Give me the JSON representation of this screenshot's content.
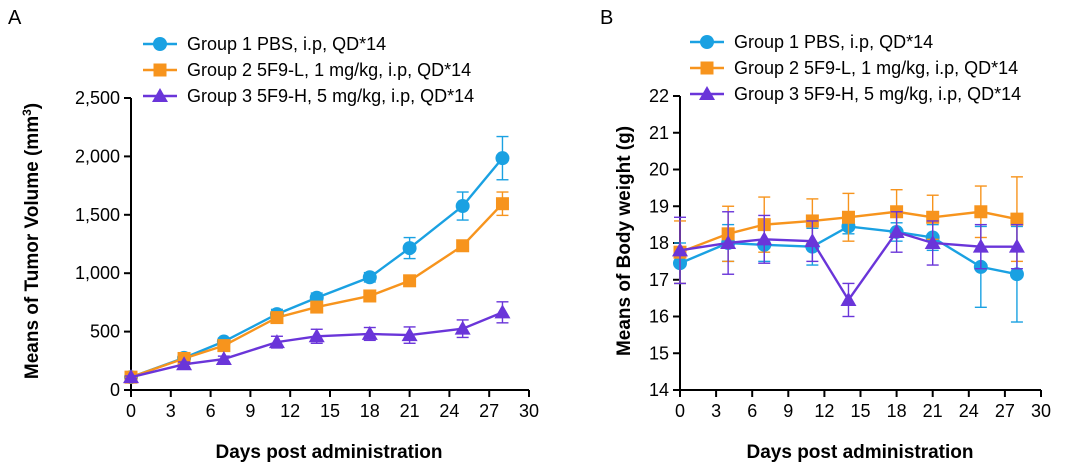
{
  "colors": {
    "group1": "#1aa1e2",
    "group2": "#f7941d",
    "group3": "#6a35d9",
    "axis": "#000000"
  },
  "chart_data": [
    {
      "panel_label": "A",
      "type": "line",
      "xlabel": "Days post administration",
      "ylabel_main": "Means of Tumor Volume (mm",
      "ylabel_sup": "3",
      "ylabel_end": ")",
      "xlim": [
        0,
        30
      ],
      "ylim": [
        0,
        2500
      ],
      "xticks": [
        0,
        3,
        6,
        9,
        12,
        15,
        18,
        21,
        24,
        27,
        30
      ],
      "yticks": [
        0,
        500,
        1000,
        1500,
        2000,
        2500
      ],
      "ytick_labels": [
        "0",
        "500",
        "1,000",
        "1,500",
        "2,000",
        "2,500"
      ],
      "grid": false,
      "legend_position": "top",
      "series": [
        {
          "name": "Group 1 PBS, i.p, QD*14",
          "color_key": "group1",
          "marker": "circle",
          "x": [
            0,
            4,
            7,
            11,
            14,
            18,
            21,
            25,
            28
          ],
          "y": [
            110,
            275,
            415,
            650,
            790,
            965,
            1215,
            1575,
            1985
          ],
          "err": [
            10,
            25,
            30,
            40,
            40,
            40,
            90,
            120,
            185
          ]
        },
        {
          "name": "Group 2 5F9-L, 1 mg/kg, i.p, QD*14",
          "color_key": "group2",
          "marker": "square",
          "x": [
            0,
            4,
            7,
            11,
            14,
            18,
            21,
            25,
            28
          ],
          "y": [
            110,
            270,
            380,
            620,
            710,
            805,
            935,
            1235,
            1595
          ],
          "err": [
            10,
            20,
            25,
            30,
            35,
            40,
            40,
            40,
            100
          ]
        },
        {
          "name": "Group 3 5F9-H, 5 mg/kg, i.p, QD*14",
          "color_key": "group3",
          "marker": "triangle",
          "x": [
            0,
            4,
            7,
            11,
            14,
            18,
            21,
            25,
            28
          ],
          "y": [
            110,
            220,
            265,
            410,
            460,
            480,
            470,
            525,
            665
          ],
          "err": [
            10,
            20,
            25,
            50,
            60,
            55,
            70,
            75,
            90
          ]
        }
      ]
    },
    {
      "panel_label": "B",
      "type": "line",
      "xlabel": "Days post administration",
      "ylabel_main": "Means of Body weight (g)",
      "ylabel_sup": "",
      "ylabel_end": "",
      "xlim": [
        0,
        30
      ],
      "ylim": [
        14,
        22
      ],
      "xticks": [
        0,
        3,
        6,
        9,
        12,
        15,
        18,
        21,
        24,
        27,
        30
      ],
      "yticks": [
        14,
        15,
        16,
        17,
        18,
        19,
        20,
        21,
        22
      ],
      "ytick_labels": [
        "14",
        "15",
        "16",
        "17",
        "18",
        "19",
        "20",
        "21",
        "22"
      ],
      "grid": false,
      "legend_position": "top",
      "series": [
        {
          "name": "Group 1 PBS, i.p, QD*14",
          "color_key": "group1",
          "marker": "circle",
          "x": [
            0,
            4,
            7,
            11,
            14,
            18,
            21,
            25,
            28
          ],
          "y": [
            17.45,
            18.0,
            17.95,
            17.9,
            18.45,
            18.3,
            18.15,
            17.35,
            17.15
          ],
          "err": [
            0.55,
            0.5,
            0.45,
            0.5,
            0.2,
            0.25,
            0.35,
            1.1,
            1.3
          ]
        },
        {
          "name": "Group 2 5F9-L, 1 mg/kg, i.p, QD*14",
          "color_key": "group2",
          "marker": "square",
          "x": [
            0,
            4,
            7,
            11,
            14,
            18,
            21,
            25,
            28
          ],
          "y": [
            17.75,
            18.25,
            18.5,
            18.6,
            18.7,
            18.85,
            18.7,
            18.85,
            18.65
          ],
          "err": [
            0.85,
            0.75,
            0.75,
            0.6,
            0.65,
            0.6,
            0.6,
            0.7,
            1.15
          ]
        },
        {
          "name": "Group 3 5F9-H, 5 mg/kg, i.p, QD*14",
          "color_key": "group3",
          "marker": "triangle",
          "x": [
            0,
            4,
            7,
            11,
            14,
            18,
            21,
            25,
            28
          ],
          "y": [
            17.8,
            18.0,
            18.1,
            18.05,
            16.45,
            18.3,
            18.0,
            17.9,
            17.9
          ],
          "err": [
            0.9,
            0.85,
            0.65,
            0.55,
            0.45,
            0.55,
            0.6,
            0.6,
            0.6
          ]
        }
      ]
    }
  ]
}
